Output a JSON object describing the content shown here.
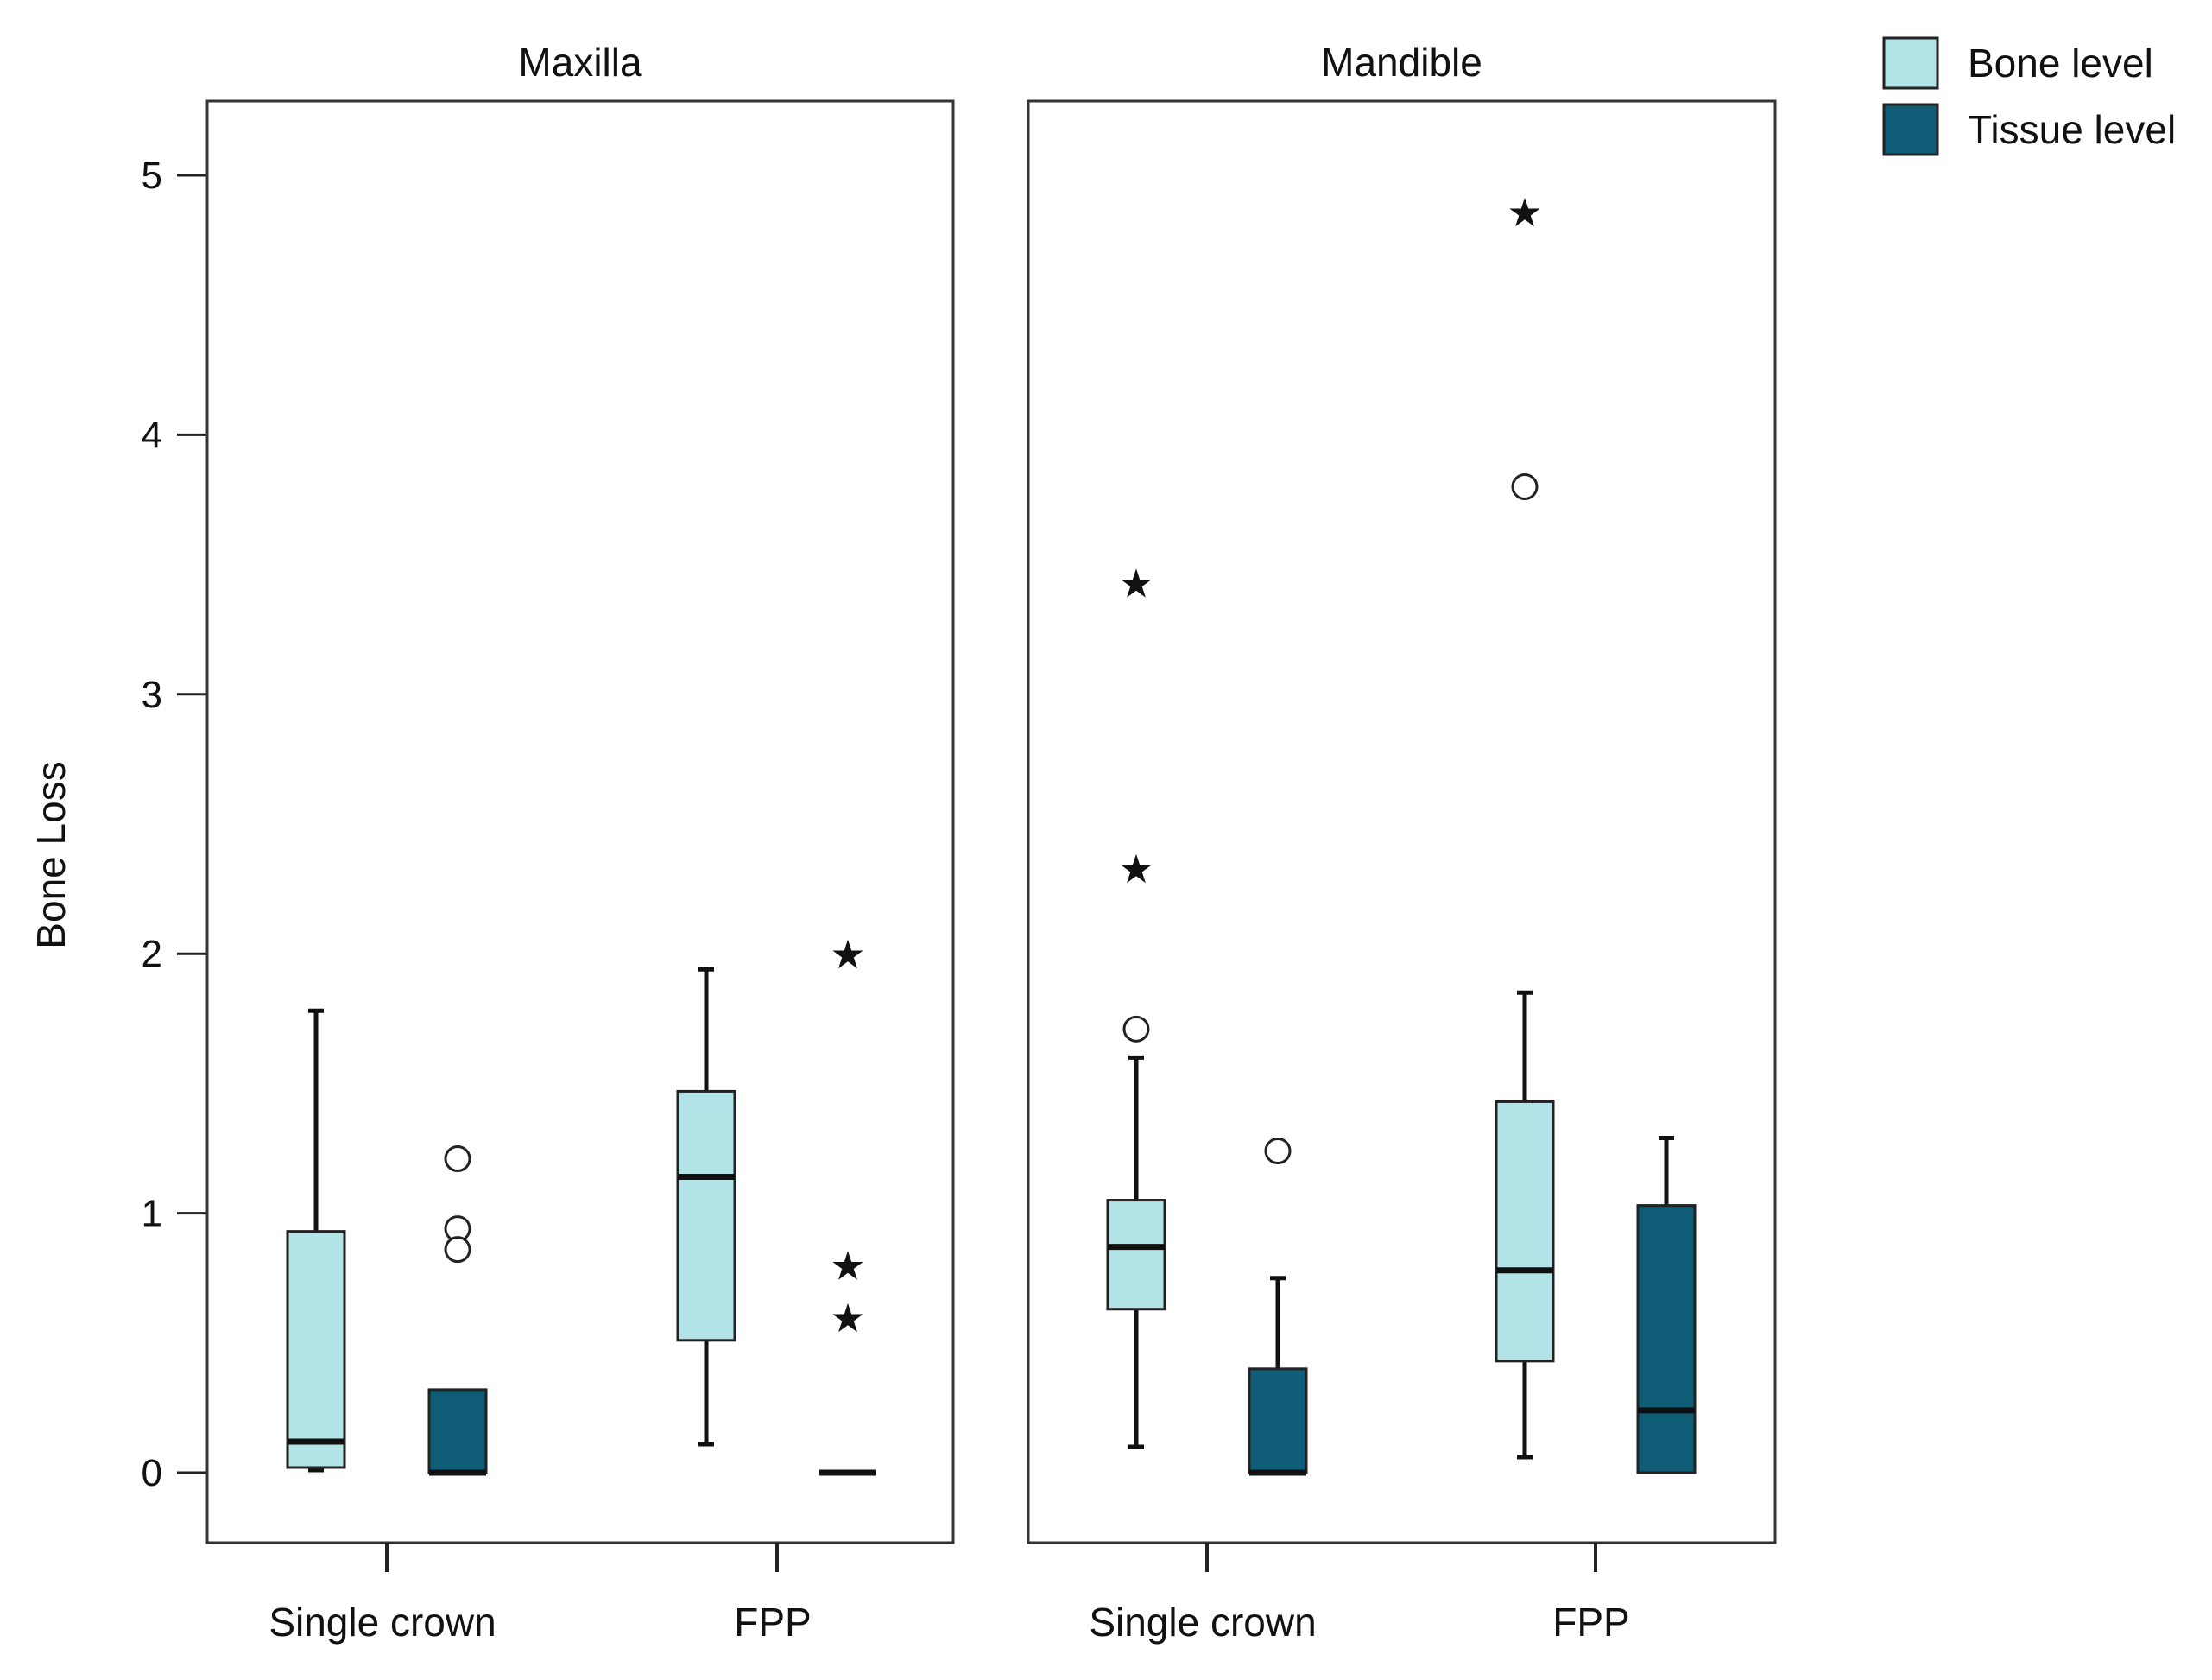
{
  "chart_data": {
    "type": "boxplot",
    "ylabel": "Bone Loss",
    "ylim": [
      -0.25,
      5.25
    ],
    "yticks": [
      "0",
      "1",
      "2",
      "3",
      "4",
      "5"
    ],
    "categories": [
      "Single crown",
      "FPP"
    ],
    "colors": {
      "Bone level": "#b2e3e6",
      "Tissue level": "#0f5c76"
    },
    "legend": {
      "position": "top-right",
      "entries": [
        {
          "name": "Bone level",
          "color": "#b2e3e6"
        },
        {
          "name": "Tissue level",
          "color": "#0f5c76"
        }
      ]
    },
    "panels": [
      {
        "title": "Maxilla",
        "groups": [
          {
            "category": "Single crown",
            "boxes": [
              {
                "series": "Bone level",
                "whisker_low": 0.01,
                "q1": 0.02,
                "median": 0.12,
                "q3": 0.93,
                "whisker_high": 1.78,
                "outliers": [],
                "extremes": []
              },
              {
                "series": "Tissue level",
                "whisker_low": 0.0,
                "q1": 0.0,
                "median": 0.0,
                "q3": 0.32,
                "whisker_high": 0.32,
                "outliers": [
                  1.21,
                  0.94,
                  0.86
                ],
                "extremes": []
              }
            ]
          },
          {
            "category": "FPP",
            "boxes": [
              {
                "series": "Bone level",
                "whisker_low": 0.11,
                "q1": 0.51,
                "median": 1.14,
                "q3": 1.47,
                "whisker_high": 1.94,
                "outliers": [],
                "extremes": []
              },
              {
                "series": "Tissue level",
                "whisker_low": 0.0,
                "q1": 0.0,
                "median": 0.0,
                "q3": 0.0,
                "whisker_high": 0.0,
                "outliers": [],
                "extremes": [
                  2.0,
                  0.8,
                  0.6
                ]
              }
            ]
          }
        ]
      },
      {
        "title": "Mandible",
        "groups": [
          {
            "category": "Single crown",
            "boxes": [
              {
                "series": "Bone level",
                "whisker_low": 0.1,
                "q1": 0.63,
                "median": 0.87,
                "q3": 1.05,
                "whisker_high": 1.6,
                "outliers": [
                  1.71
                ],
                "extremes": [
                  3.43,
                  2.33
                ]
              },
              {
                "series": "Tissue level",
                "whisker_low": 0.0,
                "q1": 0.0,
                "median": 0.0,
                "q3": 0.4,
                "whisker_high": 0.75,
                "outliers": [
                  1.24
                ],
                "extremes": []
              }
            ]
          },
          {
            "category": "FPP",
            "boxes": [
              {
                "series": "Bone level",
                "whisker_low": 0.06,
                "q1": 0.43,
                "median": 0.78,
                "q3": 1.43,
                "whisker_high": 1.85,
                "outliers": [
                  3.8
                ],
                "extremes": [
                  4.86
                ]
              },
              {
                "series": "Tissue level",
                "whisker_low": 0.0,
                "q1": 0.0,
                "median": 0.24,
                "q3": 1.03,
                "whisker_high": 1.29,
                "outliers": [],
                "extremes": []
              }
            ]
          }
        ]
      }
    ]
  }
}
